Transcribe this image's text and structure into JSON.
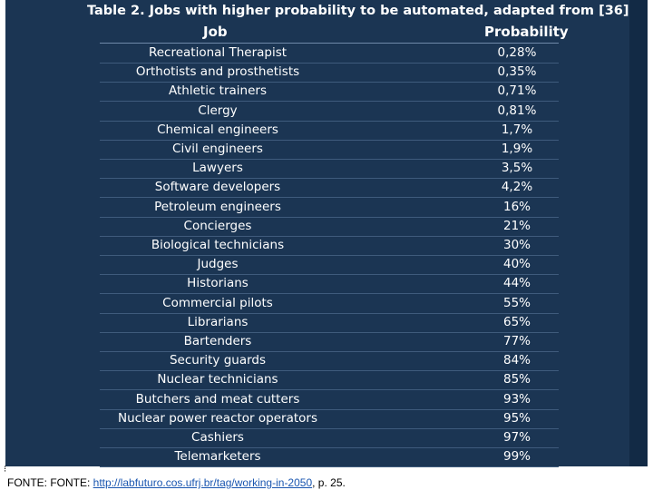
{
  "table": {
    "caption": "Table 2. Jobs with higher probability to be automated, adapted from [36].",
    "headers": {
      "job": "Job",
      "probability": "Probability"
    },
    "rows": [
      {
        "job": "Recreational Therapist",
        "probability": "0,28%"
      },
      {
        "job": "Orthotists and prosthetists",
        "probability": "0,35%"
      },
      {
        "job": "Athletic trainers",
        "probability": "0,71%"
      },
      {
        "job": "Clergy",
        "probability": "0,81%"
      },
      {
        "job": "Chemical engineers",
        "probability": "1,7%"
      },
      {
        "job": "Civil engineers",
        "probability": "1,9%"
      },
      {
        "job": "Lawyers",
        "probability": "3,5%"
      },
      {
        "job": "Software developers",
        "probability": "4,2%"
      },
      {
        "job": "Petroleum engineers",
        "probability": "16%"
      },
      {
        "job": "Concierges",
        "probability": "21%"
      },
      {
        "job": "Biological technicians",
        "probability": "30%"
      },
      {
        "job": "Judges",
        "probability": "40%"
      },
      {
        "job": "Historians",
        "probability": "44%"
      },
      {
        "job": "Commercial pilots",
        "probability": "55%"
      },
      {
        "job": "Librarians",
        "probability": "65%"
      },
      {
        "job": "Bartenders",
        "probability": "77%"
      },
      {
        "job": "Security guards",
        "probability": "84%"
      },
      {
        "job": "Nuclear technicians",
        "probability": "85%"
      },
      {
        "job": "Butchers and meat cutters",
        "probability": "93%"
      },
      {
        "job": "Nuclear power reactor operators",
        "probability": "95%"
      },
      {
        "job": "Cashiers",
        "probability": "97%"
      },
      {
        "job": "Telemarketers",
        "probability": "99%"
      }
    ]
  },
  "footer": {
    "prefix": "FONTE:  FONTE: ",
    "link_text": "http://labfuturo.cos.ufrj.br/tag/working-in-2050",
    "suffix": ", p. 25."
  },
  "colors": {
    "panel_bg": "#1b3553",
    "text": "#ffffff",
    "link": "#1a56b0"
  }
}
